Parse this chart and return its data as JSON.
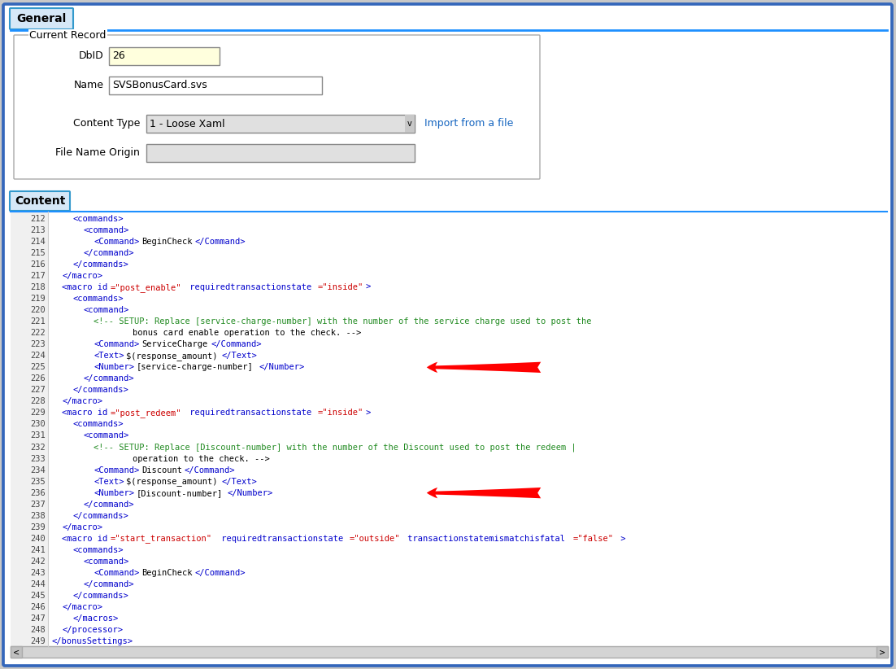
{
  "fig_width": 11.02,
  "fig_height": 8.22,
  "bg_color": "#c8c8c8",
  "tab_general_text": "General",
  "tab_content_text": "Content",
  "tab_bg": "#d6e8f7",
  "current_record_label": "Current Record",
  "dbid_label": "DbID",
  "dbid_value": "26",
  "name_label": "Name",
  "name_value": "SVSBonusCard.svs",
  "content_type_label": "Content Type",
  "content_type_value": "1 - Loose Xaml",
  "import_link_text": "Import from a file",
  "file_name_origin_label": "File Name Origin",
  "line_numbers": [
    212,
    213,
    214,
    215,
    216,
    217,
    218,
    219,
    220,
    221,
    222,
    223,
    224,
    225,
    226,
    227,
    228,
    229,
    230,
    231,
    232,
    233,
    234,
    235,
    236,
    237,
    238,
    239,
    240,
    241,
    242,
    243,
    244,
    245,
    246,
    247,
    248,
    249
  ],
  "code_lines": [
    "    <commands>",
    "      <command>",
    "        <Command>BeginCheck</Command>",
    "      </command>",
    "    </commands>",
    "  </macro>",
    "  <macro id=\"post_enable\" requiredtransactionstate=\"inside\">",
    "    <commands>",
    "      <command>",
    "        <!-- SETUP: Replace [service-charge-number] with the number of the service charge used to post the",
    "                bonus card enable operation to the check. -->",
    "        <Command>ServiceCharge</Command>",
    "        <Text>$(response_amount)</Text>",
    "        <Number>[service-charge-number]</Number>",
    "      </command>",
    "    </commands>",
    "  </macro>",
    "  <macro id=\"post_redeem\" requiredtransactionstate=\"inside\">",
    "    <commands>",
    "      <command>",
    "        <!-- SETUP: Replace [Discount-number] with the number of the Discount used to post the redeem |",
    "                operation to the check. -->",
    "        <Command>Discount</Command>",
    "        <Text>$(response_amount)</Text>",
    "        <Number>[Discount-number]</Number>",
    "      </command>",
    "    </commands>",
    "  </macro>",
    "  <macro id=\"start_transaction\" requiredtransactionstate=\"outside\" transactionstatemismatchisfatal=\"false\" >",
    "    <commands>",
    "      <command>",
    "        <Command>BeginCheck</Command>",
    "      </command>",
    "    </commands>",
    "  </macro>",
    "    </macros>",
    "  </processor>",
    "</bonusSettings>"
  ],
  "arrow1_idx": 13,
  "arrow2_idx": 24,
  "code_blue": "#0000cc",
  "code_green": "#228b22",
  "code_attr_red": "#cc0000",
  "code_black": "#000000",
  "link_color": "#1565c0"
}
